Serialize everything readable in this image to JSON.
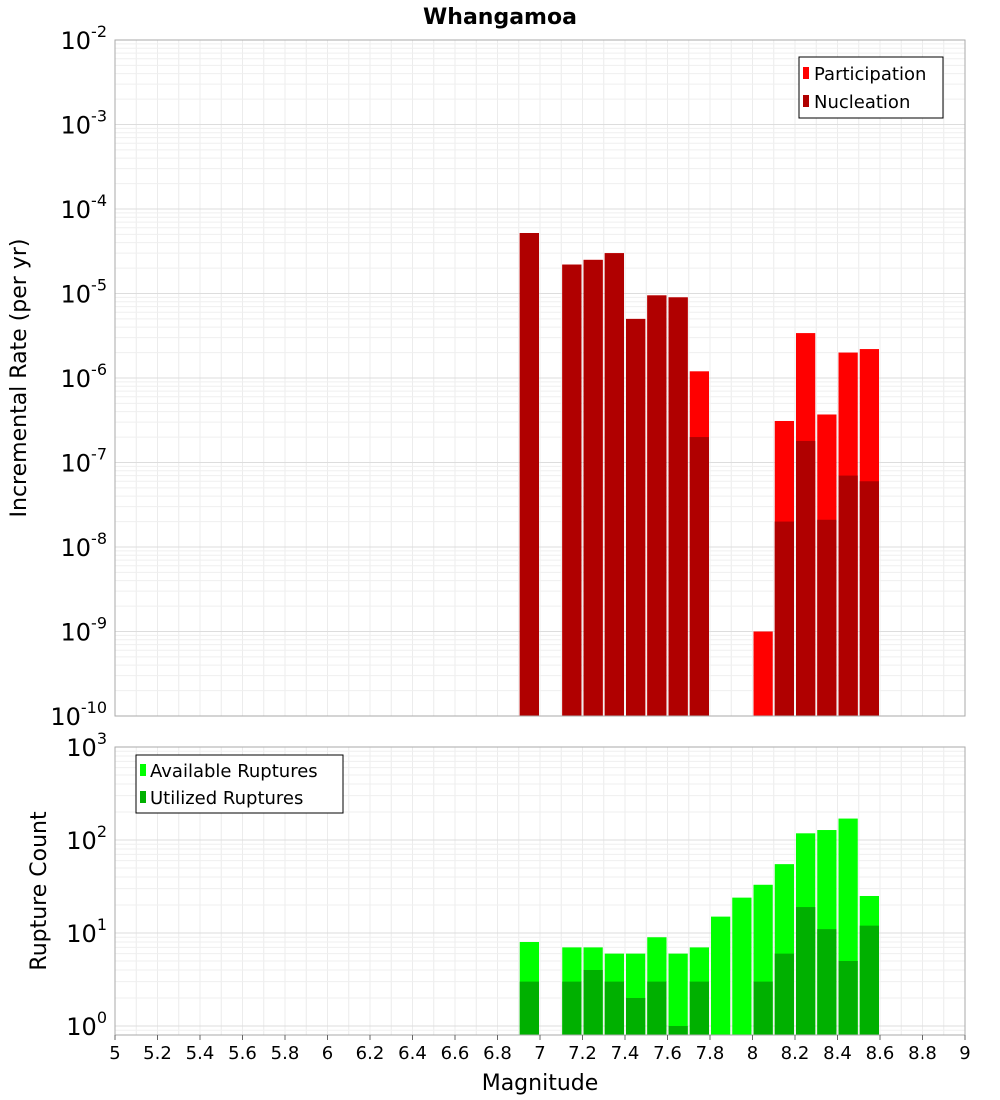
{
  "chart_data": [
    {
      "type": "bar",
      "panel": "top",
      "title": "Whangamoa",
      "ylabel": "Incremental Rate (per yr)",
      "xlabel": "Magnitude",
      "yscale": "log",
      "ylim": [
        1e-10,
        0.01
      ],
      "xlim": [
        5,
        9
      ],
      "bar_width": 0.1,
      "grid": true,
      "legend_position": "top-right",
      "x": [
        6.95,
        7.15,
        7.25,
        7.35,
        7.45,
        7.55,
        7.65,
        7.75,
        8.05,
        8.15,
        8.25,
        8.35,
        8.45,
        8.55
      ],
      "series": [
        {
          "name": "Participation",
          "color": "#ff0000",
          "values": [
            5.2e-05,
            2.2e-05,
            2.5e-05,
            3e-05,
            5e-06,
            9.5e-06,
            9e-06,
            1.2e-06,
            1e-09,
            3.1e-07,
            3.4e-06,
            3.7e-07,
            2e-06,
            2.2e-06
          ]
        },
        {
          "name": "Nucleation",
          "color": "#b00000",
          "values": [
            5.2e-05,
            2.2e-05,
            2.5e-05,
            3e-05,
            5e-06,
            9.5e-06,
            9e-06,
            2e-07,
            null,
            2e-08,
            1.8e-07,
            2.1e-08,
            7e-08,
            6e-08
          ]
        }
      ],
      "ytick_exponents": [
        -10,
        -9,
        -8,
        -7,
        -6,
        -5,
        -4,
        -3,
        -2
      ]
    },
    {
      "type": "bar",
      "panel": "bottom",
      "ylabel": "Rupture Count",
      "xlabel": "Magnitude",
      "yscale": "log",
      "ylim": [
        0.8,
        1000
      ],
      "xlim": [
        5,
        9
      ],
      "bar_width": 0.1,
      "grid": true,
      "legend_position": "top-left",
      "x": [
        6.95,
        7.15,
        7.25,
        7.35,
        7.45,
        7.55,
        7.65,
        7.75,
        7.85,
        7.95,
        8.05,
        8.15,
        8.25,
        8.35,
        8.45,
        8.55
      ],
      "series": [
        {
          "name": "Available Ruptures",
          "color": "#00ff00",
          "values": [
            8,
            7,
            7,
            6,
            6,
            9,
            6,
            7,
            15,
            24,
            33,
            55,
            118,
            128,
            170,
            25
          ]
        },
        {
          "name": "Utilized Ruptures",
          "color": "#00b000",
          "values": [
            3,
            3,
            4,
            3,
            2,
            3,
            1,
            3,
            null,
            null,
            3,
            6,
            19,
            11,
            5,
            12
          ]
        }
      ],
      "ytick_exponents": [
        0,
        1,
        2,
        3
      ]
    }
  ],
  "x_ticks": [
    "5",
    "5.2",
    "5.4",
    "5.6",
    "5.8",
    "6",
    "6.2",
    "6.4",
    "6.6",
    "6.8",
    "7",
    "7.2",
    "7.4",
    "7.6",
    "7.8",
    "8",
    "8.2",
    "8.4",
    "8.6",
    "8.8",
    "9"
  ]
}
